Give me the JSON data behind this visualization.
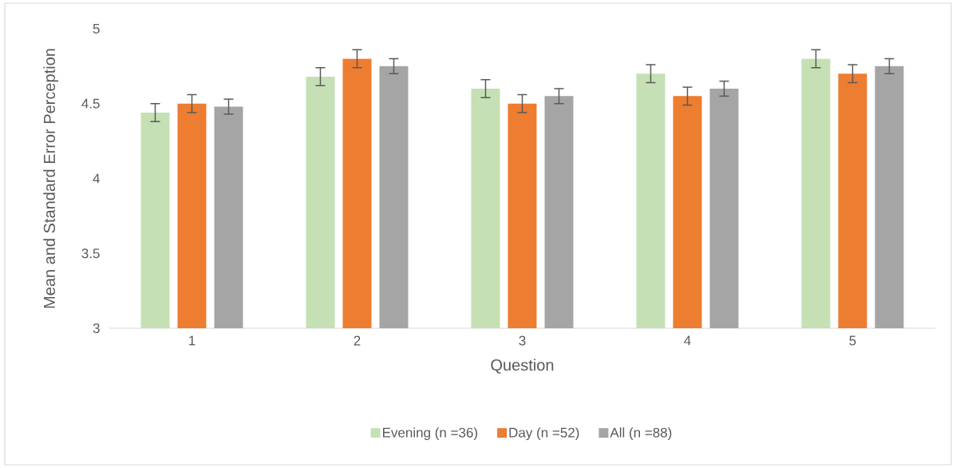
{
  "chart_data": {
    "type": "bar",
    "xlabel": "Question",
    "ylabel": "Mean and Standard Error Perception",
    "categories": [
      "1",
      "2",
      "3",
      "4",
      "5"
    ],
    "series": [
      {
        "name": "Evening (n =36)",
        "color": "#c5e0b4",
        "values": [
          4.44,
          4.68,
          4.6,
          4.7,
          4.8
        ],
        "errors": [
          0.06,
          0.06,
          0.06,
          0.06,
          0.06
        ]
      },
      {
        "name": "Day (n =52)",
        "color": "#ed7d31",
        "values": [
          4.5,
          4.8,
          4.5,
          4.55,
          4.7
        ],
        "errors": [
          0.06,
          0.06,
          0.06,
          0.06,
          0.06
        ]
      },
      {
        "name": "All (n =88)",
        "color": "#a5a5a5",
        "values": [
          4.48,
          4.75,
          4.55,
          4.6,
          4.75
        ],
        "errors": [
          0.05,
          0.05,
          0.05,
          0.05,
          0.05
        ]
      }
    ],
    "ylim": [
      3,
      5
    ],
    "yticks": [
      3,
      3.5,
      4,
      4.5,
      5
    ],
    "legend": "bottom"
  }
}
